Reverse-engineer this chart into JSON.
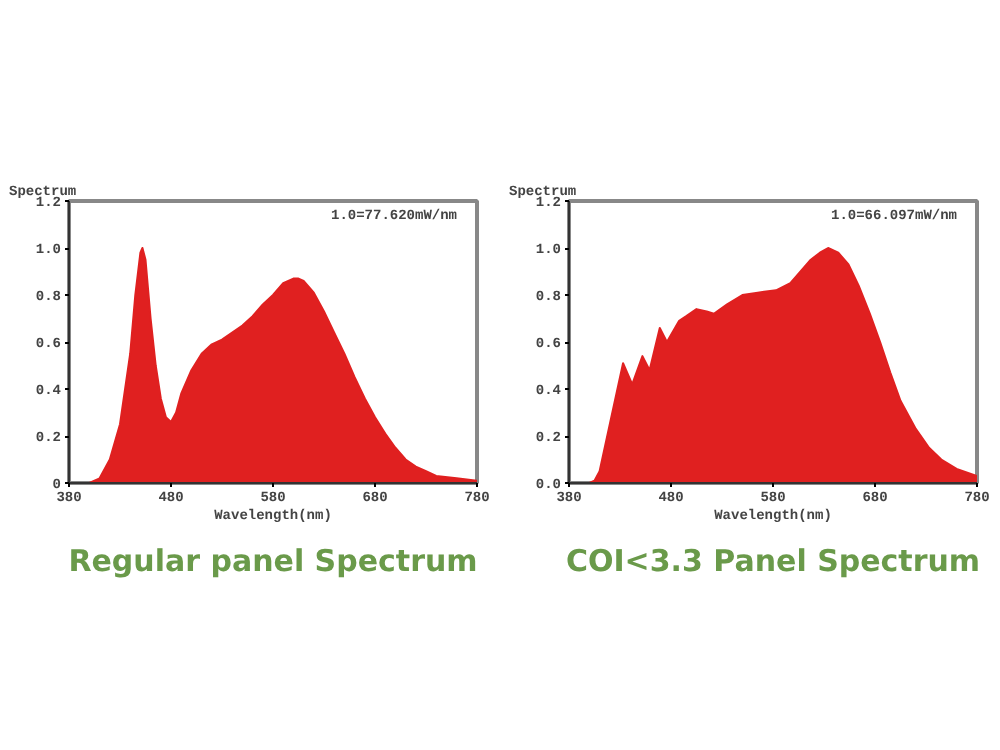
{
  "chart_data": [
    {
      "type": "area",
      "title": "Regular panel Spectrum",
      "xlabel": "Wavelength(nm)",
      "ylabel": "Spectrum",
      "annotations": [
        "1.0=77.620mW/nm"
      ],
      "xlim": [
        380,
        780
      ],
      "xticks": [
        380,
        480,
        580,
        680,
        780
      ],
      "ylim": [
        0,
        1.2
      ],
      "yticks": [
        {
          "value": 0,
          "label": "0"
        },
        {
          "value": 0.2,
          "label": "0.2"
        },
        {
          "value": 0.4,
          "label": "0.4"
        },
        {
          "value": 0.6,
          "label": "0.6"
        },
        {
          "value": 0.8,
          "label": "0.8"
        },
        {
          "value": 1.0,
          "label": "1.0"
        },
        {
          "value": 1.2,
          "label": "1.2"
        }
      ],
      "grid": false,
      "series": [
        {
          "color": "#e02020",
          "x": [
            380,
            400,
            410,
            420,
            430,
            440,
            445,
            450,
            452,
            455,
            460,
            465,
            470,
            475,
            480,
            485,
            490,
            500,
            510,
            520,
            530,
            540,
            550,
            560,
            570,
            580,
            590,
            600,
            605,
            610,
            620,
            630,
            640,
            650,
            660,
            670,
            680,
            690,
            700,
            710,
            720,
            730,
            740,
            760,
            780
          ],
          "values": [
            0,
            0,
            0.02,
            0.1,
            0.25,
            0.55,
            0.8,
            0.98,
            1.0,
            0.95,
            0.7,
            0.5,
            0.36,
            0.28,
            0.26,
            0.3,
            0.38,
            0.48,
            0.55,
            0.59,
            0.61,
            0.64,
            0.67,
            0.71,
            0.76,
            0.8,
            0.85,
            0.87,
            0.87,
            0.86,
            0.81,
            0.73,
            0.64,
            0.55,
            0.45,
            0.36,
            0.28,
            0.21,
            0.15,
            0.1,
            0.07,
            0.05,
            0.03,
            0.02,
            0.01
          ]
        }
      ]
    },
    {
      "type": "area",
      "title": "COI<3.3 Panel Spectrum",
      "xlabel": "Wavelength(nm)",
      "ylabel": "Spectrum",
      "annotations": [
        "1.0=66.097mW/nm"
      ],
      "xlim": [
        380,
        780
      ],
      "xticks": [
        380,
        480,
        580,
        680,
        780
      ],
      "ylim": [
        0,
        1.2
      ],
      "yticks": [
        {
          "value": 0,
          "label": "0.0"
        },
        {
          "value": 0.2,
          "label": "0.2"
        },
        {
          "value": 0.4,
          "label": "0.4"
        },
        {
          "value": 0.6,
          "label": "0.6"
        },
        {
          "value": 0.8,
          "label": "0.8"
        },
        {
          "value": 1.0,
          "label": "1.0"
        },
        {
          "value": 1.2,
          "label": "1.2"
        }
      ],
      "grid": false,
      "series": [
        {
          "color": "#e02020",
          "x": [
            380,
            400,
            405,
            410,
            420,
            433,
            442,
            452,
            459,
            469,
            476,
            488,
            495,
            505,
            515,
            522,
            535,
            550,
            565,
            583,
            597,
            607,
            617,
            626,
            634,
            644,
            654,
            664,
            675,
            685,
            695,
            705,
            720,
            733,
            745,
            760,
            780
          ],
          "values": [
            0,
            0,
            0.01,
            0.05,
            0.25,
            0.51,
            0.42,
            0.54,
            0.48,
            0.66,
            0.6,
            0.69,
            0.71,
            0.74,
            0.73,
            0.72,
            0.76,
            0.8,
            0.81,
            0.82,
            0.85,
            0.9,
            0.95,
            0.98,
            1.0,
            0.98,
            0.93,
            0.84,
            0.72,
            0.6,
            0.47,
            0.35,
            0.23,
            0.15,
            0.1,
            0.06,
            0.03
          ]
        }
      ]
    }
  ]
}
